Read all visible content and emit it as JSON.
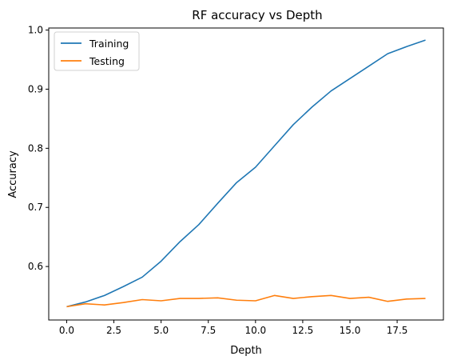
{
  "chart_data": {
    "type": "line",
    "title": "RF accuracy vs Depth",
    "xlabel": "Depth",
    "ylabel": "Accuracy",
    "xlim": [
      -0.95,
      19.95
    ],
    "ylim": [
      0.5095,
      1.0035
    ],
    "xticks": [
      0,
      2.5,
      5,
      7.5,
      10,
      12.5,
      15,
      17.5
    ],
    "xtick_labels": [
      "0.0",
      "2.5",
      "5.0",
      "7.5",
      "10.0",
      "12.5",
      "15.0",
      "17.5"
    ],
    "yticks": [
      0.6,
      0.7,
      0.8,
      0.9,
      1.0
    ],
    "ytick_labels": [
      "0.6",
      "0.7",
      "0.8",
      "0.9",
      "1.0"
    ],
    "grid": false,
    "legend_position": "top-left",
    "x": [
      0,
      1,
      2,
      3,
      4,
      5,
      6,
      7,
      8,
      9,
      10,
      11,
      12,
      13,
      14,
      15,
      16,
      17,
      18,
      19
    ],
    "series": [
      {
        "name": "Training",
        "color": "#1f77b4",
        "values": [
          0.532,
          0.54,
          0.551,
          0.566,
          0.582,
          0.609,
          0.642,
          0.671,
          0.707,
          0.742,
          0.768,
          0.804,
          0.84,
          0.87,
          0.897,
          0.918,
          0.939,
          0.96,
          0.972,
          0.983
        ]
      },
      {
        "name": "Testing",
        "color": "#ff7f0e",
        "values": [
          0.532,
          0.537,
          0.535,
          0.539,
          0.544,
          0.542,
          0.546,
          0.546,
          0.547,
          0.543,
          0.542,
          0.551,
          0.546,
          0.549,
          0.551,
          0.546,
          0.548,
          0.541,
          0.545,
          0.546
        ]
      }
    ]
  }
}
